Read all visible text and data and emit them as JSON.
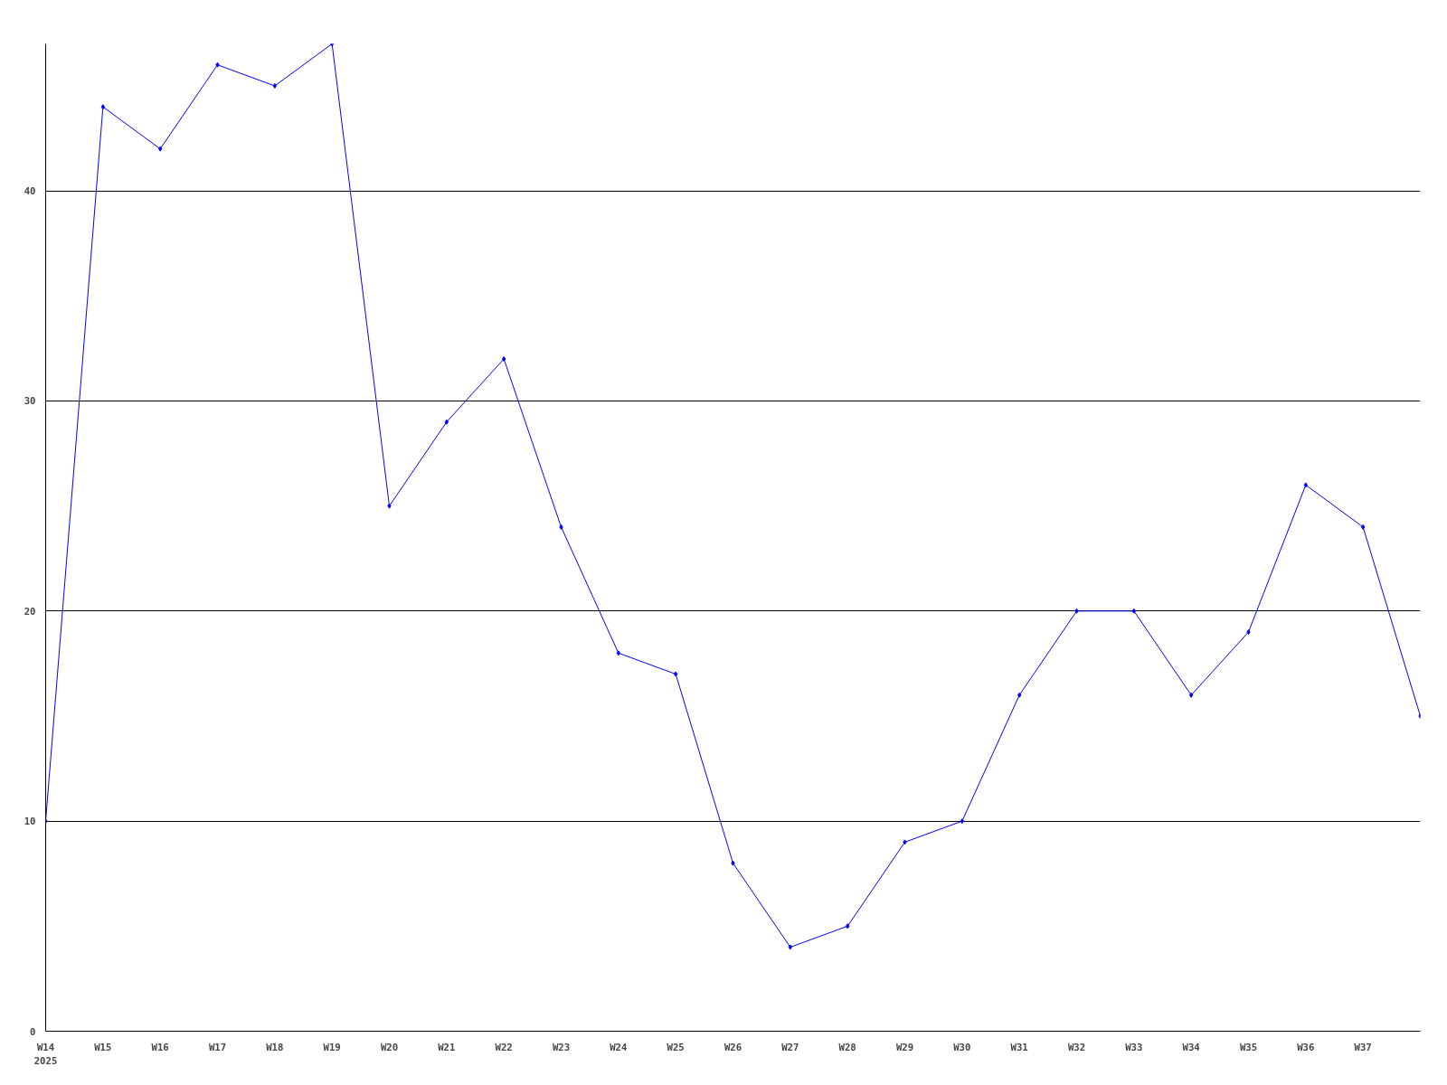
{
  "chart_data": {
    "type": "line",
    "categories": [
      "W14\n2025",
      "W15",
      "W16",
      "W17",
      "W18",
      "W19",
      "W20",
      "W21",
      "W22",
      "W23",
      "W24",
      "W25",
      "W26",
      "W27",
      "W28",
      "W29",
      "W30",
      "W31",
      "W32",
      "W33",
      "W34",
      "W35",
      "W36",
      "W37",
      null
    ],
    "series": [
      {
        "color": "#0000ff",
        "values": [
          10,
          44,
          42,
          46,
          45,
          47,
          25,
          29,
          32,
          24,
          18,
          17,
          8,
          4,
          5,
          9,
          10,
          16,
          20,
          20,
          16,
          19,
          26,
          24,
          15
        ]
      }
    ],
    "ylim": [
      0,
      47
    ],
    "yticks": [
      0,
      10,
      20,
      30,
      40
    ],
    "grid": "y",
    "marker": "diamond",
    "line_style": "solid"
  }
}
